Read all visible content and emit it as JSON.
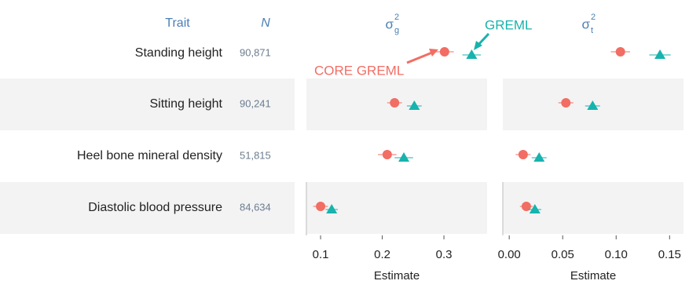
{
  "table": {
    "header": [
      "Trait",
      "N"
    ],
    "rows": [
      [
        "Standing height",
        "90,871"
      ],
      [
        "Sitting height",
        "90,241"
      ],
      [
        "Heel bone mineral density",
        "51,815"
      ],
      [
        "Diastolic blood pressure",
        "84,634"
      ]
    ]
  },
  "chart_data": [
    {
      "type": "forest",
      "title": {
        "base": "σ",
        "sub": "g",
        "sup": "2"
      },
      "xlabel": "Estimate",
      "xlim": [
        0.077,
        0.37
      ],
      "xticks": [
        0.1,
        0.2,
        0.3
      ],
      "series": [
        {
          "name": "CORE GREML",
          "color": "#f26d63",
          "values": [
            0.301,
            0.22,
            0.208,
            0.1
          ],
          "errors": [
            0.015,
            0.012,
            0.015,
            0.012
          ]
        },
        {
          "name": "GREML",
          "color": "#17b3ad",
          "values": [
            0.345,
            0.252,
            0.235,
            0.118
          ],
          "errors": [
            0.015,
            0.012,
            0.015,
            0.01
          ]
        }
      ]
    },
    {
      "type": "forest",
      "title": {
        "base": "σ",
        "sub": "t",
        "sup": "2"
      },
      "xlabel": "Estimate",
      "xlim": [
        -0.006,
        0.163
      ],
      "xticks": [
        {
          "value": 0,
          "label": "0.00"
        },
        0.05,
        {
          "value": 0.1,
          "label": "0.10"
        },
        0.15
      ],
      "series": [
        {
          "color": "#f26d63",
          "values": [
            0.104,
            0.053,
            0.013,
            0.016
          ],
          "errors": [
            0.009,
            0.007,
            0.007,
            0.006
          ]
        },
        {
          "color": "#17b3ad",
          "values": [
            0.141,
            0.078,
            0.028,
            0.024
          ],
          "errors": [
            0.01,
            0.007,
            0.007,
            0.006
          ]
        }
      ]
    }
  ]
}
